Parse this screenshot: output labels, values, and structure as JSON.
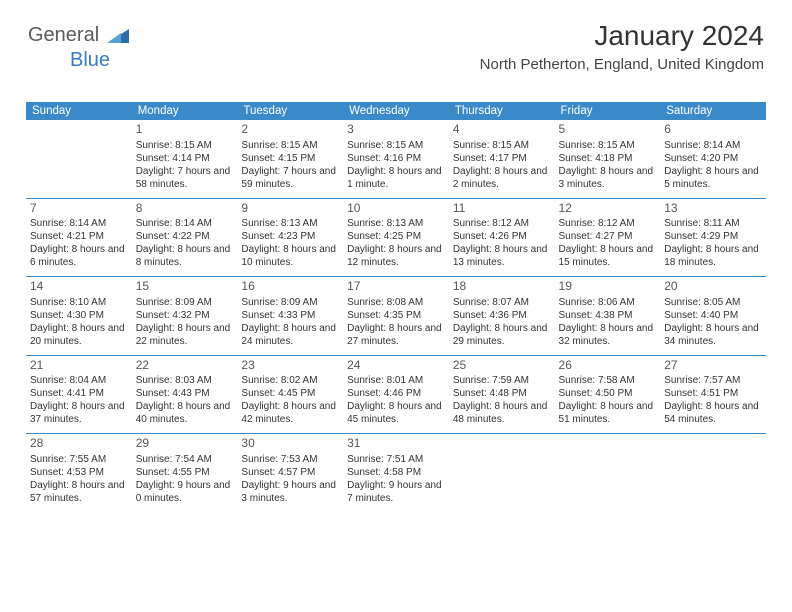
{
  "logo": {
    "text1": "General",
    "text2": "Blue"
  },
  "title": "January 2024",
  "location": "North Petherton, England, United Kingdom",
  "colors": {
    "header_bg": "#3a8ac9",
    "header_text": "#ffffff",
    "body_text": "#333333",
    "logo_blue": "#3a7bbf",
    "logo_gray": "#5a5a5a",
    "page_bg": "#ffffff"
  },
  "typography": {
    "title_fontsize": 28,
    "location_fontsize": 15,
    "dayheader_fontsize": 11.5,
    "cell_fontsize": 10,
    "daynum_fontsize": 12
  },
  "day_headers": [
    "Sunday",
    "Monday",
    "Tuesday",
    "Wednesday",
    "Thursday",
    "Friday",
    "Saturday"
  ],
  "weeks": [
    [
      null,
      {
        "n": "1",
        "sr": "8:15 AM",
        "ss": "4:14 PM",
        "dl": "7 hours and 58 minutes."
      },
      {
        "n": "2",
        "sr": "8:15 AM",
        "ss": "4:15 PM",
        "dl": "7 hours and 59 minutes."
      },
      {
        "n": "3",
        "sr": "8:15 AM",
        "ss": "4:16 PM",
        "dl": "8 hours and 1 minute."
      },
      {
        "n": "4",
        "sr": "8:15 AM",
        "ss": "4:17 PM",
        "dl": "8 hours and 2 minutes."
      },
      {
        "n": "5",
        "sr": "8:15 AM",
        "ss": "4:18 PM",
        "dl": "8 hours and 3 minutes."
      },
      {
        "n": "6",
        "sr": "8:14 AM",
        "ss": "4:20 PM",
        "dl": "8 hours and 5 minutes."
      }
    ],
    [
      {
        "n": "7",
        "sr": "8:14 AM",
        "ss": "4:21 PM",
        "dl": "8 hours and 6 minutes."
      },
      {
        "n": "8",
        "sr": "8:14 AM",
        "ss": "4:22 PM",
        "dl": "8 hours and 8 minutes."
      },
      {
        "n": "9",
        "sr": "8:13 AM",
        "ss": "4:23 PM",
        "dl": "8 hours and 10 minutes."
      },
      {
        "n": "10",
        "sr": "8:13 AM",
        "ss": "4:25 PM",
        "dl": "8 hours and 12 minutes."
      },
      {
        "n": "11",
        "sr": "8:12 AM",
        "ss": "4:26 PM",
        "dl": "8 hours and 13 minutes."
      },
      {
        "n": "12",
        "sr": "8:12 AM",
        "ss": "4:27 PM",
        "dl": "8 hours and 15 minutes."
      },
      {
        "n": "13",
        "sr": "8:11 AM",
        "ss": "4:29 PM",
        "dl": "8 hours and 18 minutes."
      }
    ],
    [
      {
        "n": "14",
        "sr": "8:10 AM",
        "ss": "4:30 PM",
        "dl": "8 hours and 20 minutes."
      },
      {
        "n": "15",
        "sr": "8:09 AM",
        "ss": "4:32 PM",
        "dl": "8 hours and 22 minutes."
      },
      {
        "n": "16",
        "sr": "8:09 AM",
        "ss": "4:33 PM",
        "dl": "8 hours and 24 minutes."
      },
      {
        "n": "17",
        "sr": "8:08 AM",
        "ss": "4:35 PM",
        "dl": "8 hours and 27 minutes."
      },
      {
        "n": "18",
        "sr": "8:07 AM",
        "ss": "4:36 PM",
        "dl": "8 hours and 29 minutes."
      },
      {
        "n": "19",
        "sr": "8:06 AM",
        "ss": "4:38 PM",
        "dl": "8 hours and 32 minutes."
      },
      {
        "n": "20",
        "sr": "8:05 AM",
        "ss": "4:40 PM",
        "dl": "8 hours and 34 minutes."
      }
    ],
    [
      {
        "n": "21",
        "sr": "8:04 AM",
        "ss": "4:41 PM",
        "dl": "8 hours and 37 minutes."
      },
      {
        "n": "22",
        "sr": "8:03 AM",
        "ss": "4:43 PM",
        "dl": "8 hours and 40 minutes."
      },
      {
        "n": "23",
        "sr": "8:02 AM",
        "ss": "4:45 PM",
        "dl": "8 hours and 42 minutes."
      },
      {
        "n": "24",
        "sr": "8:01 AM",
        "ss": "4:46 PM",
        "dl": "8 hours and 45 minutes."
      },
      {
        "n": "25",
        "sr": "7:59 AM",
        "ss": "4:48 PM",
        "dl": "8 hours and 48 minutes."
      },
      {
        "n": "26",
        "sr": "7:58 AM",
        "ss": "4:50 PM",
        "dl": "8 hours and 51 minutes."
      },
      {
        "n": "27",
        "sr": "7:57 AM",
        "ss": "4:51 PM",
        "dl": "8 hours and 54 minutes."
      }
    ],
    [
      {
        "n": "28",
        "sr": "7:55 AM",
        "ss": "4:53 PM",
        "dl": "8 hours and 57 minutes."
      },
      {
        "n": "29",
        "sr": "7:54 AM",
        "ss": "4:55 PM",
        "dl": "9 hours and 0 minutes."
      },
      {
        "n": "30",
        "sr": "7:53 AM",
        "ss": "4:57 PM",
        "dl": "9 hours and 3 minutes."
      },
      {
        "n": "31",
        "sr": "7:51 AM",
        "ss": "4:58 PM",
        "dl": "9 hours and 7 minutes."
      },
      null,
      null,
      null
    ]
  ],
  "labels": {
    "sunrise": "Sunrise:",
    "sunset": "Sunset:",
    "daylight": "Daylight:"
  }
}
